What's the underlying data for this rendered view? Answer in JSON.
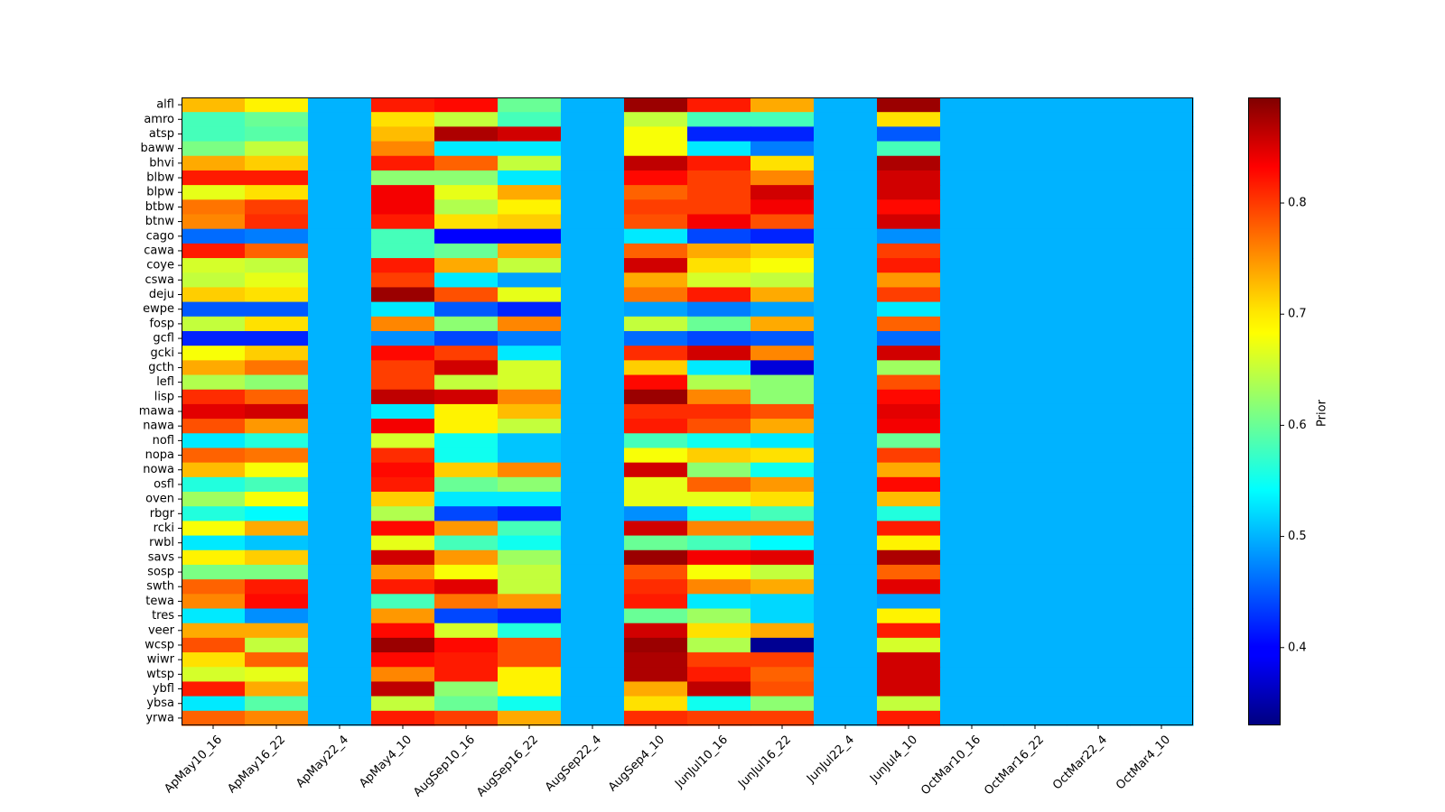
{
  "chart_data": {
    "type": "heatmap",
    "title": "",
    "xlabel": "",
    "ylabel": "",
    "colormap": "jet",
    "colorbar": {
      "label": "Prior",
      "vmin": 0.33,
      "vmax": 0.895,
      "ticks": [
        0.4,
        0.5,
        0.6,
        0.7,
        0.8
      ],
      "tick_labels": [
        "0.4",
        "0.5",
        "0.6",
        "0.7",
        "0.8"
      ]
    },
    "columns": [
      "ApMay10_16",
      "ApMay16_22",
      "ApMay22_4",
      "ApMay4_10",
      "AugSep10_16",
      "AugSep16_22",
      "AugSep22_4",
      "AugSep4_10",
      "JunJul10_16",
      "JunJul16_22",
      "JunJul22_4",
      "JunJul4_10",
      "OctMar10_16",
      "OctMar16_22",
      "OctMar22_4",
      "OctMar4_10"
    ],
    "rows": [
      "alfl",
      "amro",
      "atsp",
      "baww",
      "bhvi",
      "blbw",
      "blpw",
      "btbw",
      "btnw",
      "cago",
      "cawa",
      "coye",
      "cswa",
      "deju",
      "ewpe",
      "fosp",
      "gcfl",
      "gcki",
      "gcth",
      "lefl",
      "lisp",
      "mawa",
      "nawa",
      "nofl",
      "nopa",
      "nowa",
      "osfl",
      "oven",
      "rbgr",
      "rcki",
      "rwbl",
      "savs",
      "sosp",
      "swth",
      "tewa",
      "tres",
      "veer",
      "wcsp",
      "wiwr",
      "wtsp",
      "ybfl",
      "ybsa",
      "yrwa"
    ],
    "values": [
      [
        0.72,
        0.69,
        0.5,
        0.81,
        0.82,
        0.6,
        0.5,
        0.88,
        0.81,
        0.73,
        0.5,
        0.88,
        0.5,
        0.5,
        0.5,
        0.5
      ],
      [
        0.58,
        0.6,
        0.5,
        0.7,
        0.65,
        0.58,
        0.5,
        0.65,
        0.58,
        0.58,
        0.5,
        0.7,
        0.5,
        0.5,
        0.5,
        0.5
      ],
      [
        0.58,
        0.59,
        0.5,
        0.72,
        0.87,
        0.85,
        0.5,
        0.68,
        0.42,
        0.42,
        0.5,
        0.45,
        0.5,
        0.5,
        0.5,
        0.5
      ],
      [
        0.61,
        0.65,
        0.5,
        0.75,
        0.53,
        0.53,
        0.5,
        0.68,
        0.53,
        0.47,
        0.5,
        0.58,
        0.5,
        0.5,
        0.5,
        0.5
      ],
      [
        0.73,
        0.71,
        0.5,
        0.81,
        0.77,
        0.65,
        0.5,
        0.86,
        0.81,
        0.7,
        0.5,
        0.87,
        0.5,
        0.5,
        0.5,
        0.5
      ],
      [
        0.81,
        0.81,
        0.5,
        0.62,
        0.62,
        0.53,
        0.5,
        0.82,
        0.79,
        0.75,
        0.5,
        0.85,
        0.5,
        0.5,
        0.5,
        0.5
      ],
      [
        0.67,
        0.7,
        0.5,
        0.83,
        0.67,
        0.73,
        0.5,
        0.77,
        0.79,
        0.85,
        0.5,
        0.85,
        0.5,
        0.5,
        0.5,
        0.5
      ],
      [
        0.76,
        0.79,
        0.5,
        0.83,
        0.64,
        0.69,
        0.5,
        0.79,
        0.79,
        0.83,
        0.5,
        0.82,
        0.5,
        0.5,
        0.5,
        0.5
      ],
      [
        0.75,
        0.8,
        0.5,
        0.81,
        0.7,
        0.71,
        0.5,
        0.78,
        0.83,
        0.78,
        0.5,
        0.85,
        0.5,
        0.5,
        0.5,
        0.5
      ],
      [
        0.46,
        0.47,
        0.5,
        0.58,
        0.4,
        0.4,
        0.5,
        0.53,
        0.44,
        0.42,
        0.5,
        0.48,
        0.5,
        0.5,
        0.5,
        0.5
      ],
      [
        0.81,
        0.77,
        0.5,
        0.58,
        0.6,
        0.73,
        0.5,
        0.77,
        0.73,
        0.71,
        0.5,
        0.79,
        0.5,
        0.5,
        0.5,
        0.5
      ],
      [
        0.66,
        0.65,
        0.5,
        0.81,
        0.73,
        0.65,
        0.5,
        0.85,
        0.7,
        0.68,
        0.5,
        0.81,
        0.5,
        0.5,
        0.5,
        0.5
      ],
      [
        0.65,
        0.67,
        0.5,
        0.79,
        0.53,
        0.49,
        0.5,
        0.73,
        0.66,
        0.65,
        0.5,
        0.74,
        0.5,
        0.5,
        0.5,
        0.5
      ],
      [
        0.71,
        0.7,
        0.5,
        0.88,
        0.78,
        0.67,
        0.5,
        0.76,
        0.81,
        0.73,
        0.5,
        0.79,
        0.5,
        0.5,
        0.5,
        0.5
      ],
      [
        0.45,
        0.45,
        0.5,
        0.53,
        0.45,
        0.42,
        0.5,
        0.49,
        0.47,
        0.49,
        0.5,
        0.53,
        0.5,
        0.5,
        0.5,
        0.5
      ],
      [
        0.65,
        0.7,
        0.5,
        0.75,
        0.62,
        0.75,
        0.5,
        0.65,
        0.6,
        0.73,
        0.5,
        0.77,
        0.5,
        0.5,
        0.5,
        0.5
      ],
      [
        0.42,
        0.42,
        0.5,
        0.48,
        0.44,
        0.47,
        0.5,
        0.46,
        0.44,
        0.45,
        0.5,
        0.46,
        0.5,
        0.5,
        0.5,
        0.5
      ],
      [
        0.68,
        0.71,
        0.5,
        0.82,
        0.79,
        0.53,
        0.5,
        0.8,
        0.85,
        0.75,
        0.5,
        0.85,
        0.5,
        0.5,
        0.5,
        0.5
      ],
      [
        0.73,
        0.76,
        0.5,
        0.79,
        0.85,
        0.66,
        0.5,
        0.71,
        0.53,
        0.38,
        0.5,
        0.63,
        0.5,
        0.5,
        0.5,
        0.5
      ],
      [
        0.64,
        0.62,
        0.5,
        0.79,
        0.65,
        0.66,
        0.5,
        0.82,
        0.64,
        0.62,
        0.5,
        0.78,
        0.5,
        0.5,
        0.5,
        0.5
      ],
      [
        0.8,
        0.77,
        0.5,
        0.86,
        0.85,
        0.75,
        0.5,
        0.88,
        0.75,
        0.62,
        0.5,
        0.82,
        0.5,
        0.5,
        0.5,
        0.5
      ],
      [
        0.84,
        0.85,
        0.5,
        0.53,
        0.69,
        0.72,
        0.5,
        0.8,
        0.8,
        0.78,
        0.5,
        0.84,
        0.5,
        0.5,
        0.5,
        0.5
      ],
      [
        0.78,
        0.74,
        0.5,
        0.83,
        0.69,
        0.65,
        0.5,
        0.81,
        0.78,
        0.73,
        0.5,
        0.83,
        0.5,
        0.5,
        0.5,
        0.5
      ],
      [
        0.53,
        0.56,
        0.5,
        0.66,
        0.55,
        0.51,
        0.5,
        0.58,
        0.55,
        0.53,
        0.5,
        0.6,
        0.5,
        0.5,
        0.5,
        0.5
      ],
      [
        0.77,
        0.76,
        0.5,
        0.8,
        0.55,
        0.51,
        0.5,
        0.68,
        0.71,
        0.7,
        0.5,
        0.79,
        0.5,
        0.5,
        0.5,
        0.5
      ],
      [
        0.72,
        0.68,
        0.5,
        0.82,
        0.71,
        0.75,
        0.5,
        0.85,
        0.62,
        0.55,
        0.5,
        0.73,
        0.5,
        0.5,
        0.5,
        0.5
      ],
      [
        0.56,
        0.58,
        0.5,
        0.81,
        0.6,
        0.62,
        0.5,
        0.67,
        0.77,
        0.74,
        0.5,
        0.82,
        0.5,
        0.5,
        0.5,
        0.5
      ],
      [
        0.63,
        0.68,
        0.5,
        0.71,
        0.53,
        0.53,
        0.5,
        0.67,
        0.67,
        0.7,
        0.5,
        0.72,
        0.5,
        0.5,
        0.5,
        0.5
      ],
      [
        0.56,
        0.54,
        0.5,
        0.64,
        0.44,
        0.42,
        0.5,
        0.48,
        0.55,
        0.58,
        0.5,
        0.56,
        0.5,
        0.5,
        0.5,
        0.5
      ],
      [
        0.68,
        0.73,
        0.5,
        0.82,
        0.74,
        0.58,
        0.5,
        0.85,
        0.75,
        0.75,
        0.5,
        0.81,
        0.5,
        0.5,
        0.5,
        0.5
      ],
      [
        0.53,
        0.51,
        0.5,
        0.67,
        0.58,
        0.55,
        0.5,
        0.6,
        0.58,
        0.54,
        0.5,
        0.69,
        0.5,
        0.5,
        0.5,
        0.5
      ],
      [
        0.69,
        0.71,
        0.5,
        0.85,
        0.74,
        0.63,
        0.5,
        0.88,
        0.83,
        0.84,
        0.5,
        0.87,
        0.5,
        0.5,
        0.5,
        0.5
      ],
      [
        0.61,
        0.61,
        0.5,
        0.74,
        0.68,
        0.65,
        0.5,
        0.78,
        0.68,
        0.65,
        0.5,
        0.77,
        0.5,
        0.5,
        0.5,
        0.5
      ],
      [
        0.77,
        0.81,
        0.5,
        0.81,
        0.84,
        0.65,
        0.5,
        0.8,
        0.75,
        0.73,
        0.5,
        0.84,
        0.5,
        0.5,
        0.5,
        0.5
      ],
      [
        0.75,
        0.82,
        0.5,
        0.58,
        0.76,
        0.74,
        0.5,
        0.81,
        0.53,
        0.52,
        0.5,
        0.49,
        0.5,
        0.5,
        0.5,
        0.5
      ],
      [
        0.53,
        0.48,
        0.5,
        0.74,
        0.44,
        0.42,
        0.5,
        0.6,
        0.63,
        0.52,
        0.5,
        0.69,
        0.5,
        0.5,
        0.5,
        0.5
      ],
      [
        0.73,
        0.73,
        0.5,
        0.82,
        0.66,
        0.56,
        0.5,
        0.85,
        0.7,
        0.73,
        0.5,
        0.81,
        0.5,
        0.5,
        0.5,
        0.5
      ],
      [
        0.78,
        0.65,
        0.5,
        0.88,
        0.82,
        0.78,
        0.5,
        0.88,
        0.64,
        0.34,
        0.5,
        0.66,
        0.5,
        0.5,
        0.5,
        0.5
      ],
      [
        0.7,
        0.77,
        0.5,
        0.82,
        0.81,
        0.78,
        0.5,
        0.87,
        0.79,
        0.79,
        0.5,
        0.85,
        0.5,
        0.5,
        0.5,
        0.5
      ],
      [
        0.66,
        0.67,
        0.5,
        0.75,
        0.81,
        0.69,
        0.5,
        0.87,
        0.81,
        0.77,
        0.5,
        0.85,
        0.5,
        0.5,
        0.5,
        0.5
      ],
      [
        0.81,
        0.73,
        0.5,
        0.86,
        0.62,
        0.69,
        0.5,
        0.73,
        0.86,
        0.78,
        0.5,
        0.85,
        0.5,
        0.5,
        0.5,
        0.5
      ],
      [
        0.53,
        0.59,
        0.5,
        0.65,
        0.6,
        0.55,
        0.5,
        0.7,
        0.55,
        0.62,
        0.5,
        0.65,
        0.5,
        0.5,
        0.5,
        0.5
      ],
      [
        0.77,
        0.75,
        0.5,
        0.81,
        0.79,
        0.73,
        0.5,
        0.8,
        0.79,
        0.79,
        0.5,
        0.81,
        0.5,
        0.5,
        0.5,
        0.5
      ]
    ]
  }
}
